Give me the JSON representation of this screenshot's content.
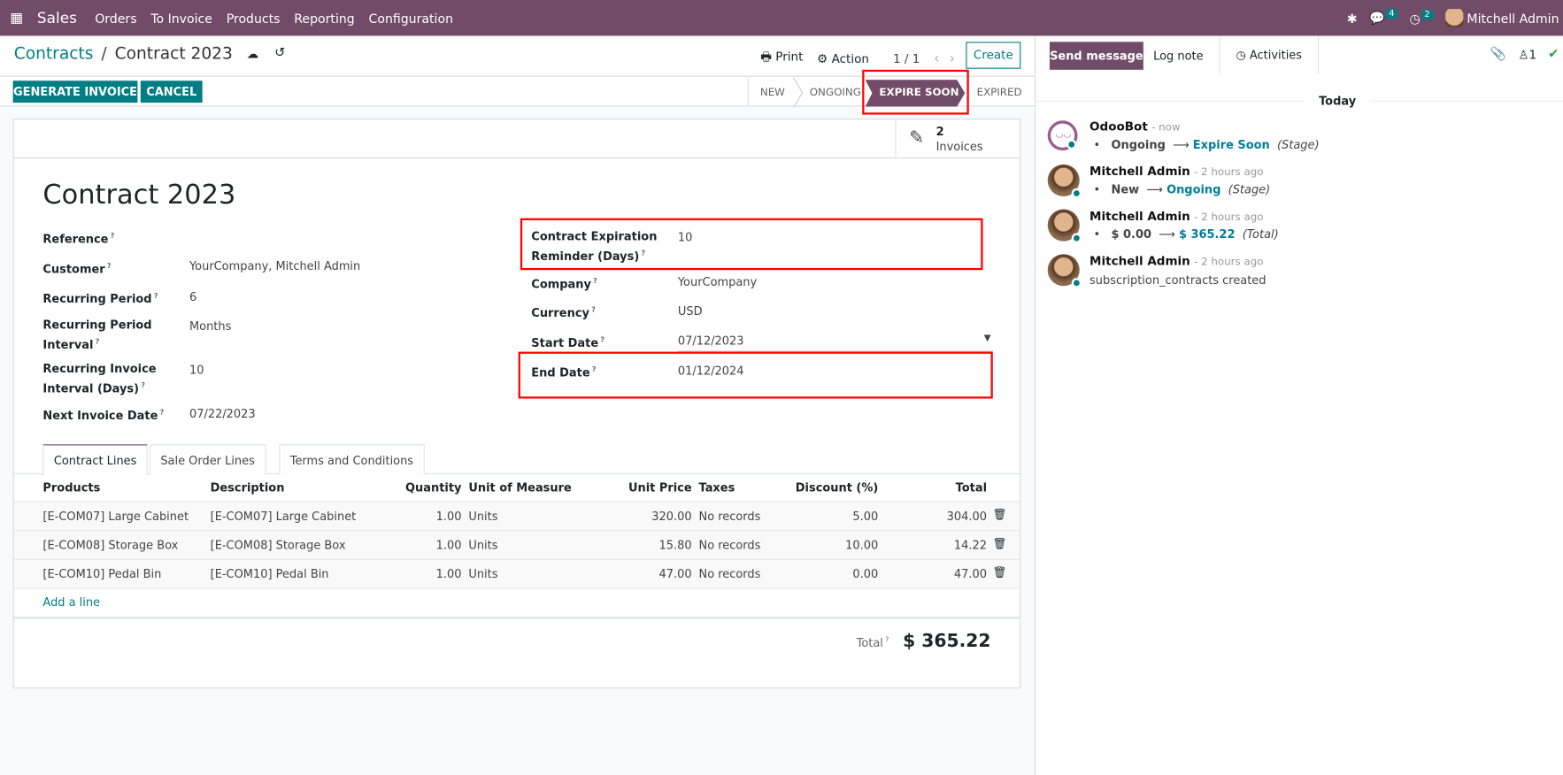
{
  "navbar": {
    "app": "Sales",
    "menu": [
      "Orders",
      "To Invoice",
      "Products",
      "Reporting",
      "Configuration"
    ],
    "messages_count": "4",
    "activities_count": "2",
    "user": "Mitchell Admin",
    "color": "#714b67"
  },
  "breadcrumb": {
    "parent": "Contracts",
    "current": "Contract 2023"
  },
  "toolbar": {
    "print": "Print",
    "action": "Action",
    "pager": "1 / 1",
    "create": "Create"
  },
  "actions": {
    "generate_invoice": "GENERATE INVOICE",
    "cancel": "CANCEL"
  },
  "statusbar": {
    "stages": [
      "NEW",
      "ONGOING",
      "EXPIRE SOON",
      "EXPIRED"
    ],
    "active": "EXPIRE SOON"
  },
  "smart_button": {
    "count": "2",
    "label": "Invoices"
  },
  "form": {
    "title": "Contract 2023",
    "left": [
      {
        "label": "Reference",
        "value": ""
      },
      {
        "label": "Customer",
        "value": "YourCompany, Mitchell Admin"
      },
      {
        "label": "Recurring Period",
        "value": "6"
      },
      {
        "label": "Recurring Period Interval",
        "value": "Months"
      },
      {
        "label": "Recurring Invoice Interval (Days)",
        "value": "10"
      },
      {
        "label": "Next Invoice Date",
        "value": "07/22/2023"
      }
    ],
    "right": [
      {
        "label": "Contract Expiration Reminder (Days)",
        "value": "10"
      },
      {
        "label": "Company",
        "value": "YourCompany"
      },
      {
        "label": "Currency",
        "value": "USD"
      },
      {
        "label": "Start Date",
        "value": "07/12/2023"
      },
      {
        "label": "End Date",
        "value": "01/12/2024"
      }
    ]
  },
  "tabs": [
    "Contract Lines",
    "Sale Order Lines",
    "Terms and Conditions"
  ],
  "table": {
    "headers": [
      "Products",
      "Description",
      "Quantity",
      "Unit of Measure",
      "Unit Price",
      "Taxes",
      "Discount (%)",
      "Total"
    ],
    "rows": [
      [
        "[E-COM07] Large Cabinet",
        "[E-COM07] Large Cabinet",
        "1.00",
        "Units",
        "320.00",
        "No records",
        "5.00",
        "304.00"
      ],
      [
        "[E-COM08] Storage Box",
        "[E-COM08] Storage Box",
        "1.00",
        "Units",
        "15.80",
        "No records",
        "10.00",
        "14.22"
      ],
      [
        "[E-COM10] Pedal Bin",
        "[E-COM10] Pedal Bin",
        "1.00",
        "Units",
        "47.00",
        "No records",
        "0.00",
        "47.00"
      ]
    ],
    "add_line": "Add a line"
  },
  "total": {
    "label": "Total",
    "value": "$ 365.22"
  },
  "chatter": {
    "send_message": "Send message",
    "log_note": "Log note",
    "activities": "Activities",
    "followers": "1",
    "date_separator": "Today",
    "messages": [
      {
        "author": "OdooBot",
        "time": "- now",
        "old": "Ongoing",
        "new": "Expire Soon",
        "field": "(Stage)"
      },
      {
        "author": "Mitchell Admin",
        "time": "- 2 hours ago",
        "old": "New",
        "new": "Ongoing",
        "field": "(Stage)"
      },
      {
        "author": "Mitchell Admin",
        "time": "- 2 hours ago",
        "old": "$ 0.00",
        "new": "$ 365.22",
        "field": "(Total)"
      },
      {
        "author": "Mitchell Admin",
        "time": "- 2 hours ago",
        "body": "subscription_contracts created"
      }
    ]
  }
}
